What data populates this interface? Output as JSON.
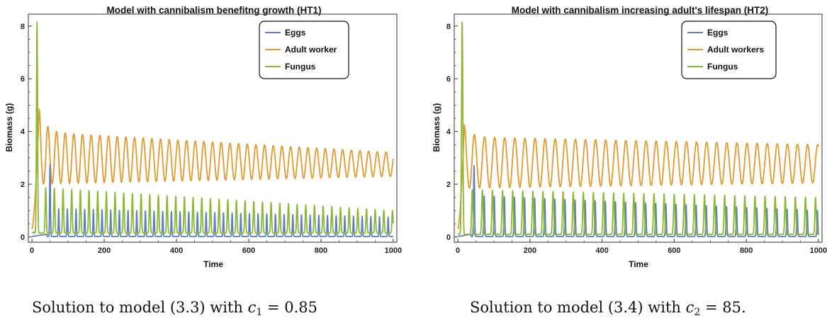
{
  "chart_data": [
    {
      "type": "line",
      "title": "Model with cannibalism benefitng growth (HT1)",
      "xlabel": "Time",
      "ylabel": "Biomass (g)",
      "xlim": [
        -10,
        1010
      ],
      "ylim": [
        -0.2,
        8.45
      ],
      "xticks": [
        0,
        200,
        400,
        600,
        800,
        1000
      ],
      "yticks": [
        0,
        2,
        4,
        6,
        8
      ],
      "grid": false,
      "legend": "top-right",
      "period": 24,
      "series": [
        {
          "name": "Eggs",
          "color": "#5b7fbf",
          "initial_peak": [
            50,
            2.75
          ],
          "cycle_min": 0.02,
          "cycle_max_start": 1.1,
          "cycle_max_end": 0.75
        },
        {
          "name": "Adult worker",
          "color": "#e49a2b",
          "initial_peak": [
            20,
            4.85
          ],
          "cycle_min_start": 2.0,
          "cycle_min_end": 2.3,
          "cycle_max_start": 4.0,
          "cycle_max_end": 3.2
        },
        {
          "name": "Fungus",
          "color": "#8ab832",
          "initial_peak": [
            14,
            8.15
          ],
          "cycle_min": 0.15,
          "cycle_max_start": 1.9,
          "cycle_max_end": 1.0
        }
      ]
    },
    {
      "type": "line",
      "title": "Model with cannibalism increasing adult's lifespan (HT2)",
      "xlabel": "Time",
      "ylabel": "Biomass (g)",
      "xlim": [
        -10,
        1010
      ],
      "ylim": [
        -0.2,
        8.45
      ],
      "xticks": [
        0,
        200,
        400,
        600,
        800,
        1000
      ],
      "yticks": [
        0,
        2,
        4,
        6,
        8
      ],
      "grid": false,
      "legend": "top-right",
      "period": 28,
      "series": [
        {
          "name": "Eggs",
          "color": "#5b7fbf",
          "initial_peak": [
            45,
            2.7
          ],
          "cycle_min": 0.02,
          "cycle_max_start": 1.6,
          "cycle_max_end": 1.0
        },
        {
          "name": "Adult workers",
          "color": "#e49a2b",
          "initial_peak": [
            18,
            4.25
          ],
          "cycle_min_start": 1.85,
          "cycle_min_end": 2.05,
          "cycle_max_start": 3.8,
          "cycle_max_end": 3.5
        },
        {
          "name": "Fungus",
          "color": "#8ab832",
          "initial_peak": [
            12,
            8.15
          ],
          "cycle_min": 0.1,
          "cycle_max_start": 1.8,
          "cycle_max_end": 1.5
        }
      ]
    }
  ],
  "captions": [
    {
      "prefix": "Solution to model (3.3) with ",
      "var": "c",
      "sub": "1",
      "rest": " = 0.85"
    },
    {
      "prefix": "Solution to model (3.4) with ",
      "var": "c",
      "sub": "2",
      "rest": " = 85."
    }
  ]
}
